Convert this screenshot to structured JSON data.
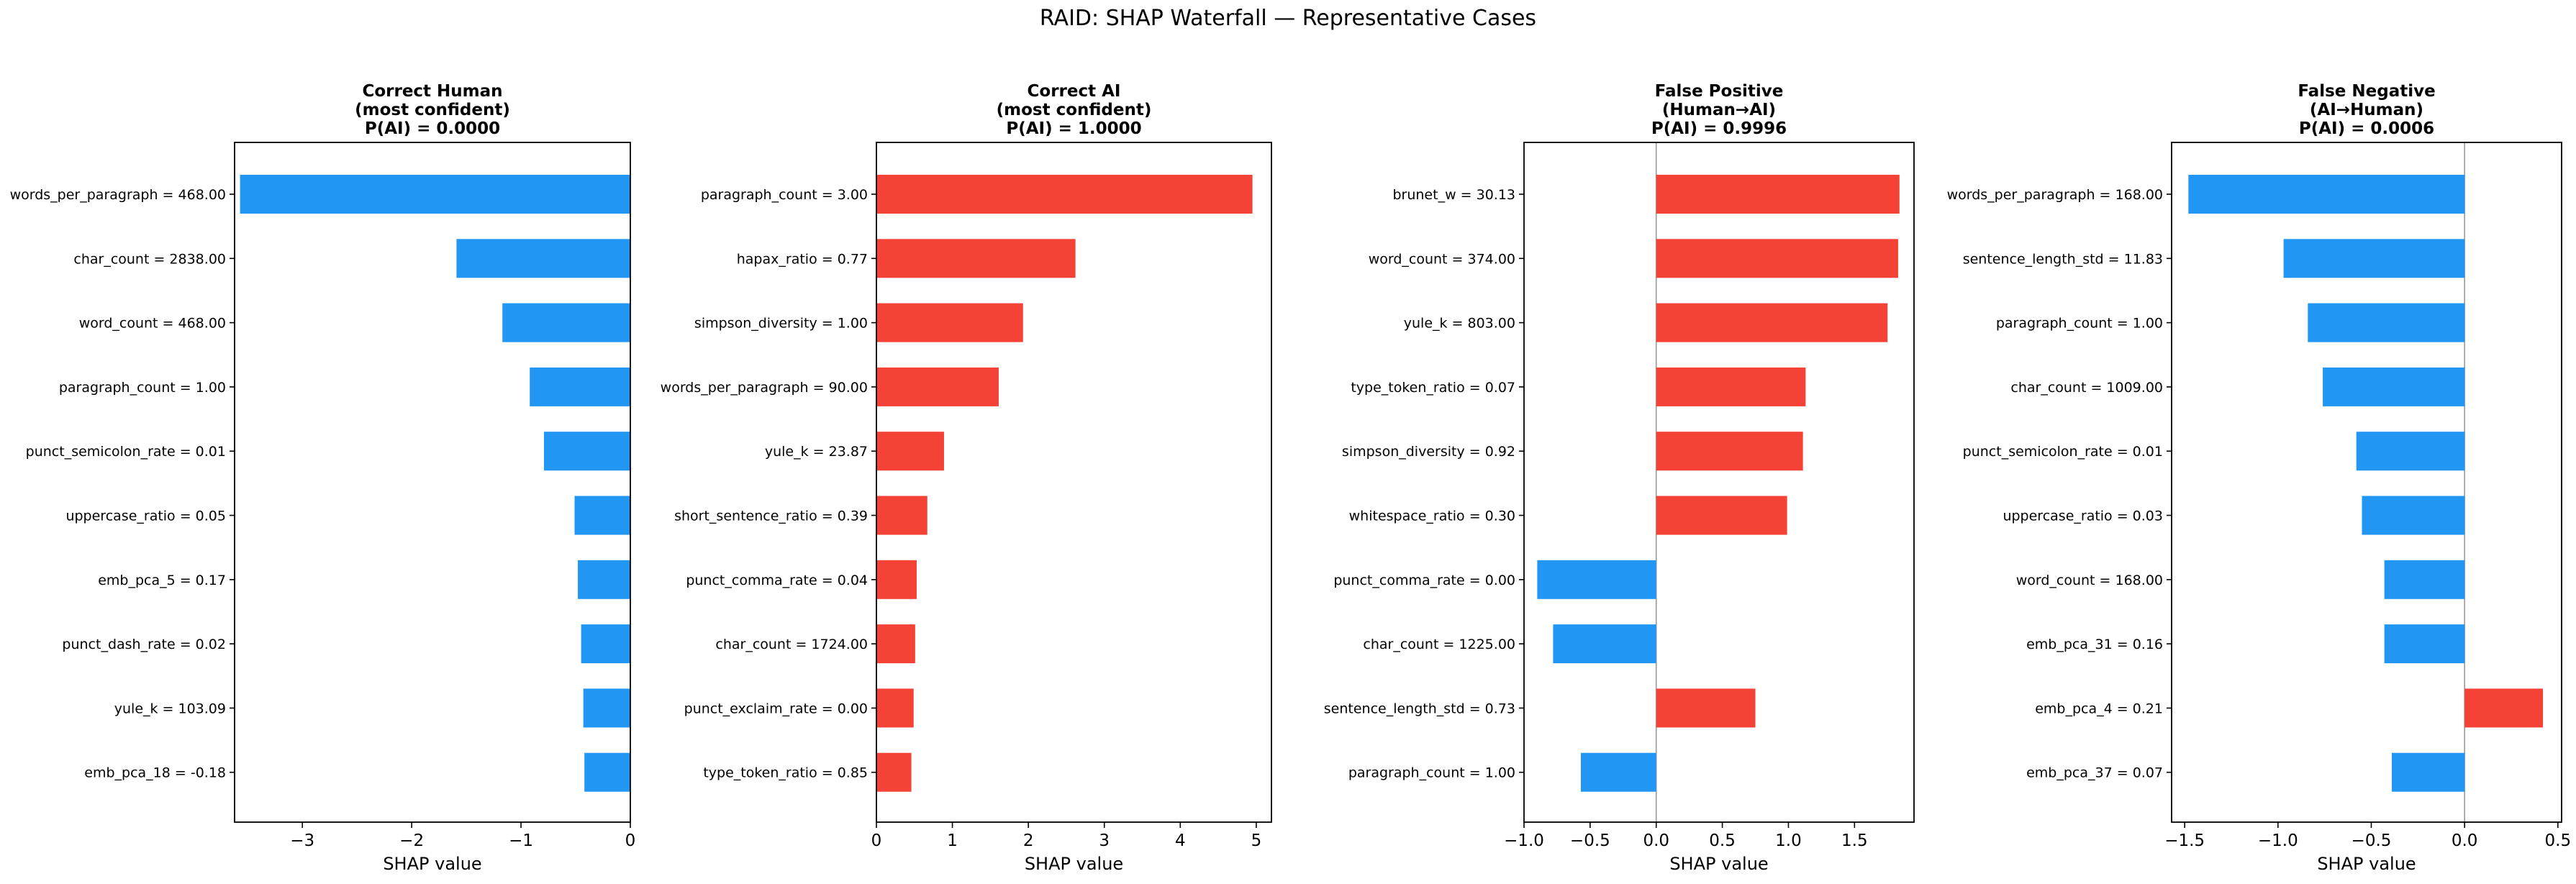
{
  "figure": {
    "title": "RAID: SHAP Waterfall — Representative Cases"
  },
  "colors": {
    "positive": "#F44336",
    "negative": "#2196F3",
    "zero_line": "#999999"
  },
  "chart_data": [
    {
      "type": "bar",
      "orientation": "horizontal",
      "title_lines": [
        "Correct Human",
        "(most confident)",
        "P(AI) = 0.0000"
      ],
      "xlabel": "SHAP value",
      "xlim": [
        -3.62,
        0.0
      ],
      "xticks": [
        -3,
        -2,
        -1,
        0
      ],
      "xtick_labels": [
        "−3",
        "−2",
        "−1",
        "0"
      ],
      "zero_line": false,
      "categories": [
        "words_per_paragraph = 468.00",
        "char_count = 2838.00",
        "word_count = 468.00",
        "paragraph_count = 1.00",
        "punct_semicolon_rate = 0.01",
        "uppercase_ratio = 0.05",
        "emb_pca_5 = 0.17",
        "punct_dash_rate = 0.02",
        "yule_k = 103.09",
        "emb_pca_18 = -0.18"
      ],
      "values": [
        -3.57,
        -1.59,
        -1.17,
        -0.92,
        -0.79,
        -0.51,
        -0.48,
        -0.45,
        -0.43,
        -0.42
      ]
    },
    {
      "type": "bar",
      "orientation": "horizontal",
      "title_lines": [
        "Correct AI",
        "(most confident)",
        "P(AI) = 1.0000"
      ],
      "xlabel": "SHAP value",
      "xlim": [
        0.0,
        5.2
      ],
      "xticks": [
        0,
        1,
        2,
        3,
        4,
        5
      ],
      "xtick_labels": [
        "0",
        "1",
        "2",
        "3",
        "4",
        "5"
      ],
      "zero_line": false,
      "categories": [
        "paragraph_count = 3.00",
        "hapax_ratio = 0.77",
        "simpson_diversity = 1.00",
        "words_per_paragraph = 90.00",
        "yule_k = 23.87",
        "short_sentence_ratio = 0.39",
        "punct_comma_rate = 0.04",
        "char_count = 1724.00",
        "punct_exclaim_rate = 0.00",
        "type_token_ratio = 0.85"
      ],
      "values": [
        4.95,
        2.62,
        1.93,
        1.61,
        0.89,
        0.67,
        0.53,
        0.51,
        0.49,
        0.46
      ]
    },
    {
      "type": "bar",
      "orientation": "horizontal",
      "title_lines": [
        "False Positive",
        "(Human→AI)",
        "P(AI) = 0.9996"
      ],
      "xlabel": "SHAP value",
      "xlim": [
        -1.0,
        1.95
      ],
      "xticks": [
        -1.0,
        -0.5,
        0.0,
        0.5,
        1.0,
        1.5
      ],
      "xtick_labels": [
        "−1.0",
        "−0.5",
        "0.0",
        "0.5",
        "1.0",
        "1.5"
      ],
      "zero_line": true,
      "categories": [
        "brunet_w = 30.13",
        "word_count = 374.00",
        "yule_k = 803.00",
        "type_token_ratio = 0.07",
        "simpson_diversity = 0.92",
        "whitespace_ratio = 0.30",
        "punct_comma_rate = 0.00",
        "char_count = 1225.00",
        "sentence_length_std = 0.73",
        "paragraph_count = 1.00"
      ],
      "values": [
        1.84,
        1.83,
        1.75,
        1.13,
        1.11,
        0.99,
        -0.9,
        -0.78,
        0.75,
        -0.57
      ]
    },
    {
      "type": "bar",
      "orientation": "horizontal",
      "title_lines": [
        "False Negative",
        "(AI→Human)",
        "P(AI) = 0.0006"
      ],
      "xlabel": "SHAP value",
      "xlim": [
        -1.57,
        0.52
      ],
      "xticks": [
        -1.5,
        -1.0,
        -0.5,
        0.0,
        0.5
      ],
      "xtick_labels": [
        "−1.5",
        "−1.0",
        "−0.5",
        "0.0",
        "0.5"
      ],
      "zero_line": true,
      "categories": [
        "words_per_paragraph = 168.00",
        "sentence_length_std = 11.83",
        "paragraph_count = 1.00",
        "char_count = 1009.00",
        "punct_semicolon_rate = 0.01",
        "uppercase_ratio = 0.03",
        "word_count = 168.00",
        "emb_pca_31 = 0.16",
        "emb_pca_4 = 0.21",
        "emb_pca_37 = 0.07"
      ],
      "values": [
        -1.48,
        -0.97,
        -0.84,
        -0.76,
        -0.58,
        -0.55,
        -0.43,
        -0.43,
        0.42,
        -0.39
      ]
    }
  ]
}
